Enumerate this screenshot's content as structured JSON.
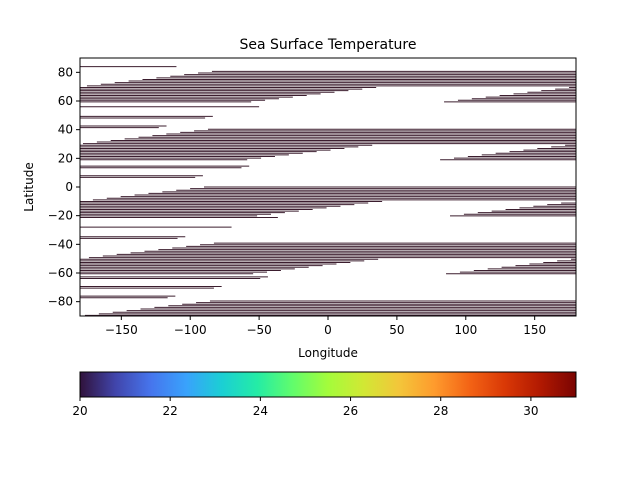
{
  "chart_data": {
    "type": "heatmap",
    "title": "Sea Surface Temperature",
    "xlabel": "Longitude",
    "ylabel": "Latitude",
    "xlim": [
      -180,
      180
    ],
    "ylim": [
      -90,
      90
    ],
    "xticks": [
      -150,
      -100,
      -50,
      0,
      50,
      100,
      150
    ],
    "yticks": [
      -80,
      -60,
      -40,
      -20,
      0,
      20,
      40,
      60,
      80
    ],
    "grid": false,
    "colorbar": {
      "colormap": "turbo",
      "vmin": 20,
      "vmax": 31,
      "ticks": [
        20,
        22,
        24,
        26,
        28,
        30
      ],
      "placement": "bottom"
    },
    "line_color": "#3b1d2e",
    "gap_pattern": {
      "latitude_period": 40,
      "description": "contour lines drawn only where wrapped-longitude coverage exists"
    }
  }
}
